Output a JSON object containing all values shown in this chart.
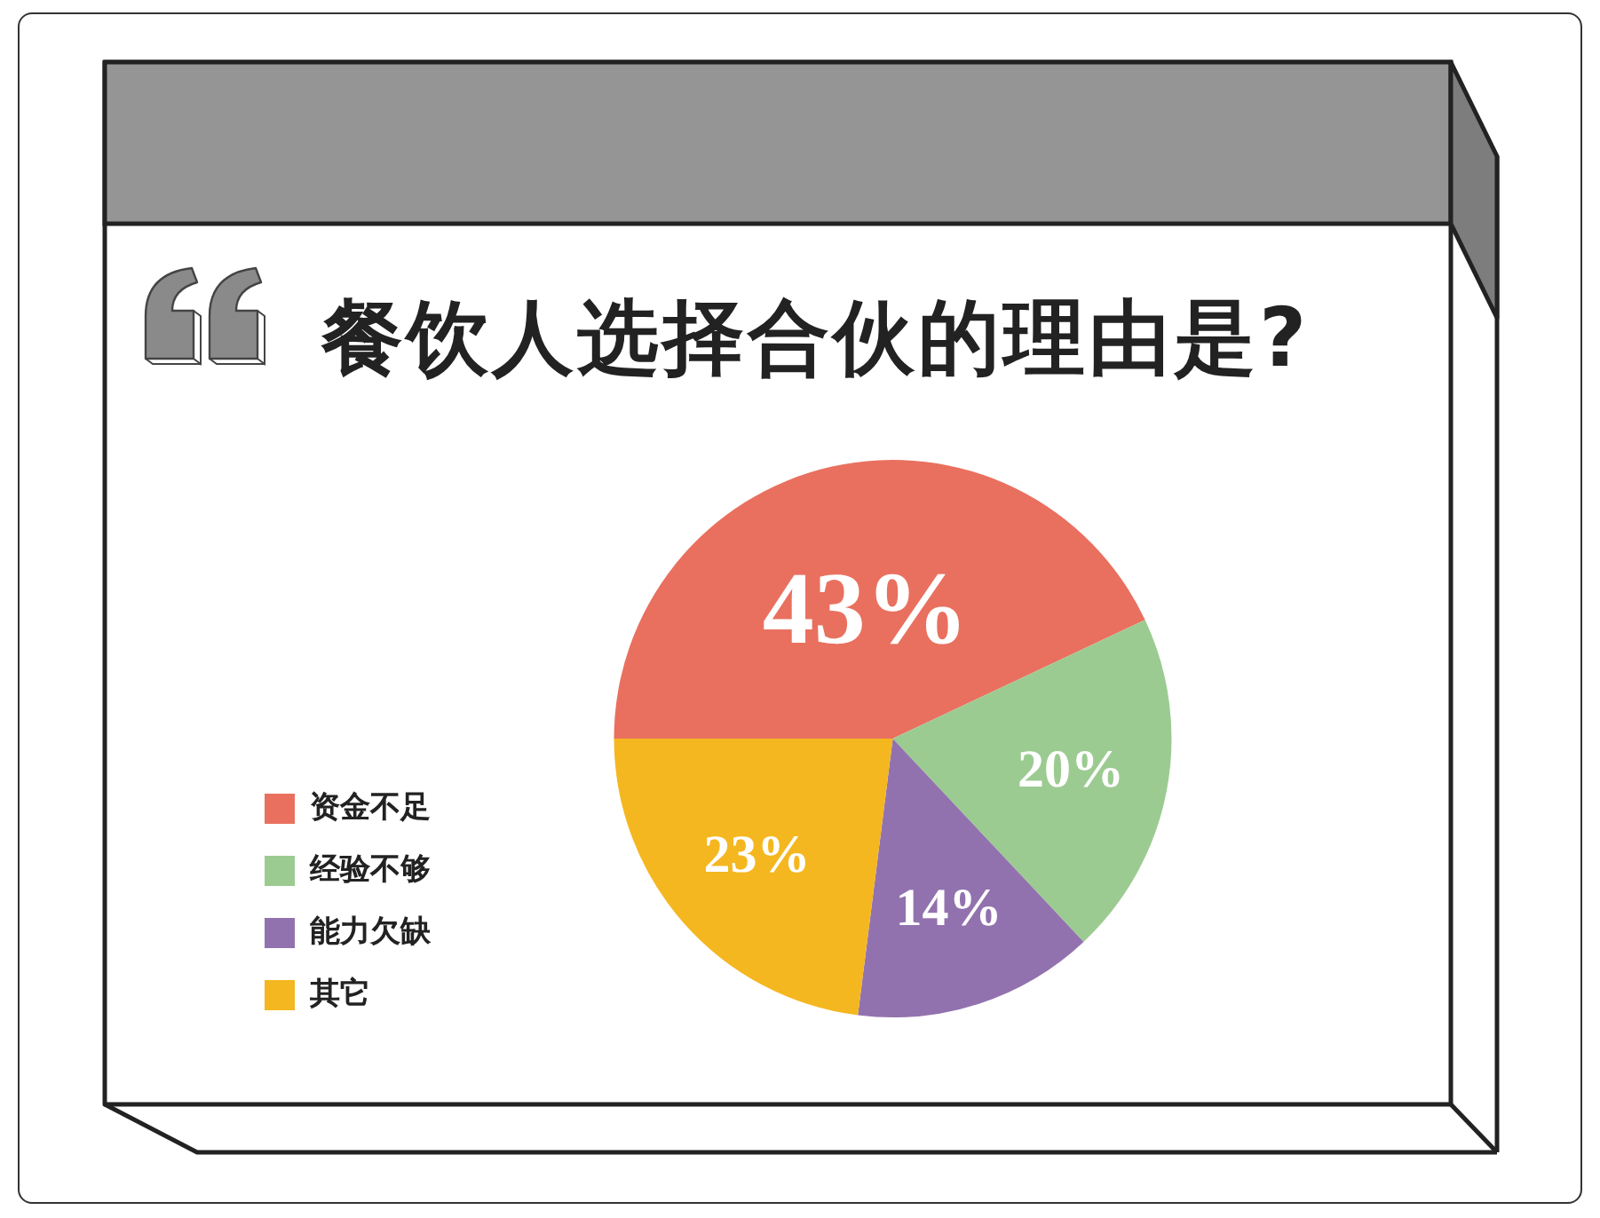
{
  "chart_data": {
    "type": "pie",
    "title": "餐饮人选择合伙的理由是?",
    "categories": [
      "资金不足",
      "经验不够",
      "能力欠缺",
      "其它"
    ],
    "values": [
      43,
      20,
      14,
      23
    ],
    "colors": [
      "#e9705f",
      "#9ccb92",
      "#9272ae",
      "#f4b720"
    ],
    "value_labels": [
      "43%",
      "20%",
      "14%",
      "23%"
    ],
    "legend": "bottom left"
  }
}
